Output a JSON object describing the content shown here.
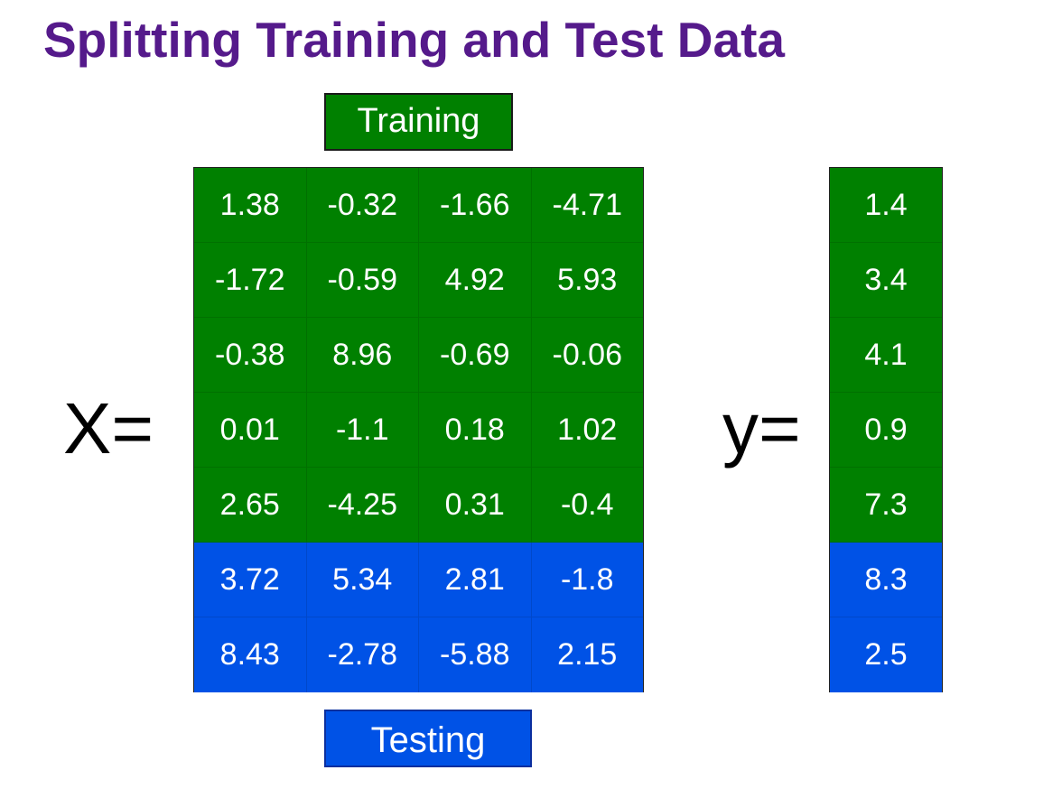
{
  "title": "Splitting Training and Test Data",
  "colors": {
    "train": "#008000",
    "test": "#0052e6",
    "title": "#551a8b"
  },
  "labels": {
    "training": "Training",
    "testing": "Testing",
    "x": "X=",
    "y": "y="
  },
  "X": [
    {
      "split": "train",
      "values": [
        "1.38",
        "-0.32",
        "-1.66",
        "-4.71"
      ]
    },
    {
      "split": "train",
      "values": [
        "-1.72",
        "-0.59",
        "4.92",
        "5.93"
      ]
    },
    {
      "split": "train",
      "values": [
        "-0.38",
        "8.96",
        "-0.69",
        "-0.06"
      ]
    },
    {
      "split": "train",
      "values": [
        "0.01",
        "-1.1",
        "0.18",
        "1.02"
      ]
    },
    {
      "split": "train",
      "values": [
        "2.65",
        "-4.25",
        "0.31",
        "-0.4"
      ]
    },
    {
      "split": "test",
      "values": [
        "3.72",
        "5.34",
        "2.81",
        "-1.8"
      ]
    },
    {
      "split": "test",
      "values": [
        "8.43",
        "-2.78",
        "-5.88",
        "2.15"
      ]
    }
  ],
  "y": [
    {
      "split": "train",
      "value": "1.4"
    },
    {
      "split": "train",
      "value": "3.4"
    },
    {
      "split": "train",
      "value": "4.1"
    },
    {
      "split": "train",
      "value": "0.9"
    },
    {
      "split": "train",
      "value": "7.3"
    },
    {
      "split": "test",
      "value": "8.3"
    },
    {
      "split": "test",
      "value": "2.5"
    }
  ]
}
